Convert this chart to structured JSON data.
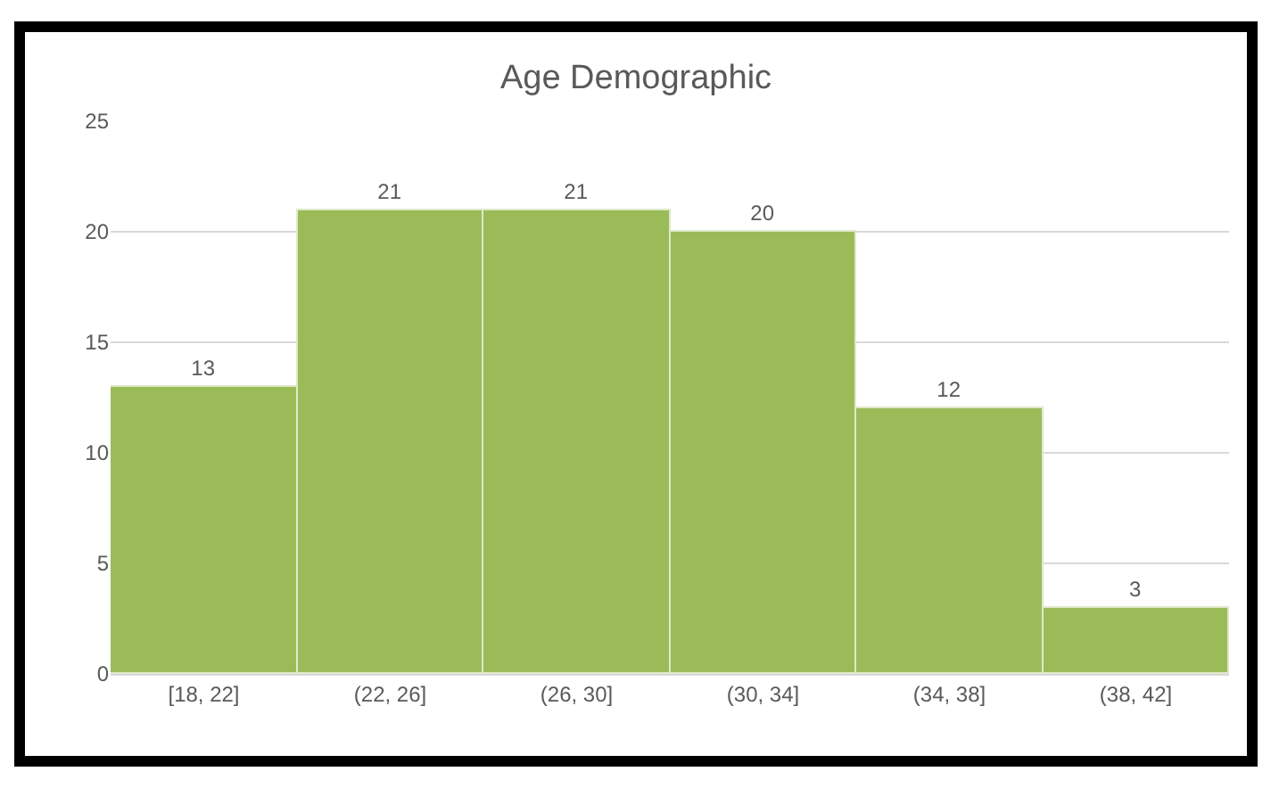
{
  "chart_data": {
    "type": "bar",
    "title": "Age Demographic",
    "categories": [
      "[18, 22]",
      "(22, 26]",
      "(26, 30]",
      "(30, 34]",
      "(34, 38]",
      "(38, 42]"
    ],
    "values": [
      13,
      21,
      21,
      20,
      12,
      3
    ],
    "color": "#9bbb59",
    "ylim": [
      0,
      25
    ],
    "yticks": [
      0,
      5,
      10,
      15,
      20,
      25
    ],
    "grid": "y",
    "data_labels": true
  }
}
